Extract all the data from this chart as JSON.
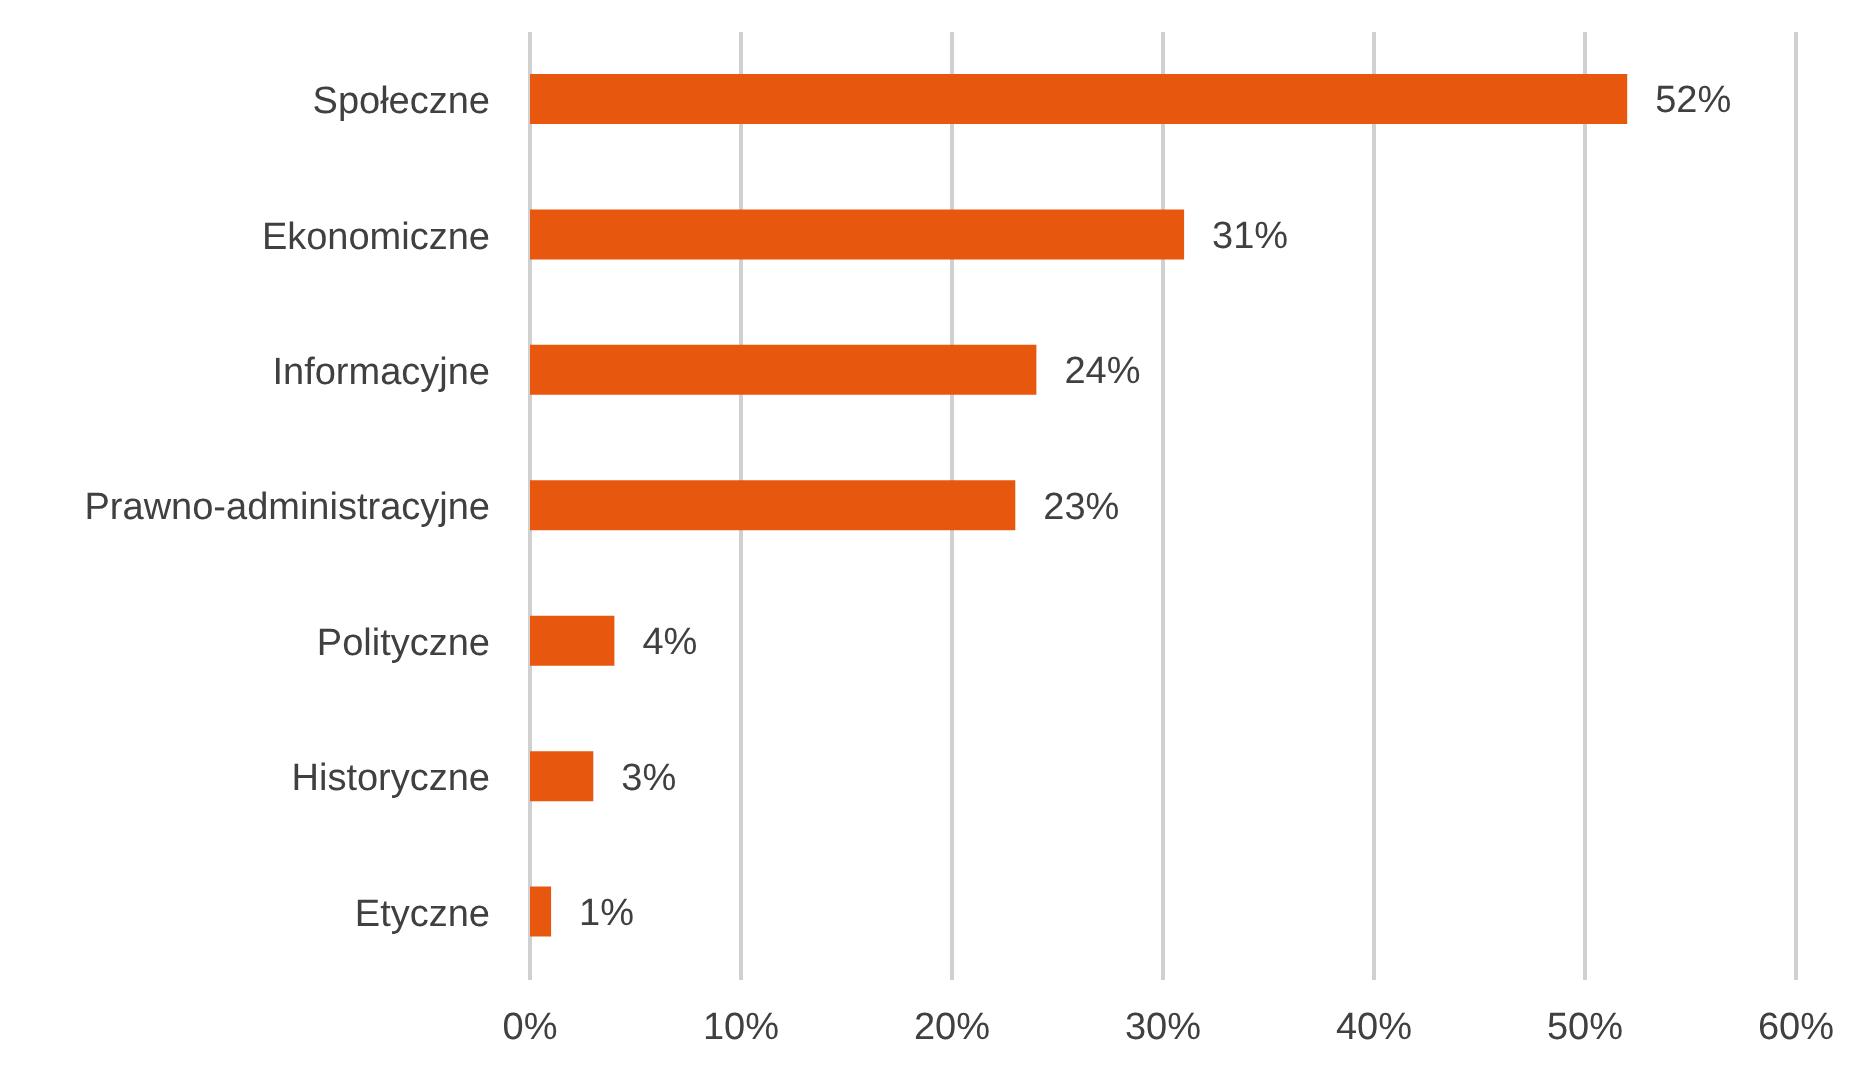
{
  "chart_data": {
    "type": "bar",
    "orientation": "horizontal",
    "categories": [
      "Społeczne",
      "Ekonomiczne",
      "Informacyjne",
      "Prawno-administracyjne",
      "Polityczne",
      "Historyczne",
      "Etyczne"
    ],
    "values": [
      52,
      31,
      24,
      23,
      4,
      3,
      1
    ],
    "value_labels": [
      "52%",
      "31%",
      "24%",
      "23%",
      "4%",
      "3%",
      "1%"
    ],
    "color": "#e8570e",
    "xlim": [
      0,
      60
    ],
    "xticks": [
      {
        "value": 0,
        "label": "0%"
      },
      {
        "value": 10,
        "label": "10%"
      },
      {
        "value": 20,
        "label": "20%"
      },
      {
        "value": 30,
        "label": "30%"
      },
      {
        "value": 40,
        "label": "40%"
      },
      {
        "value": 50,
        "label": "50%"
      },
      {
        "value": 60,
        "label": "60%"
      }
    ],
    "grid": "x",
    "legend": false
  }
}
